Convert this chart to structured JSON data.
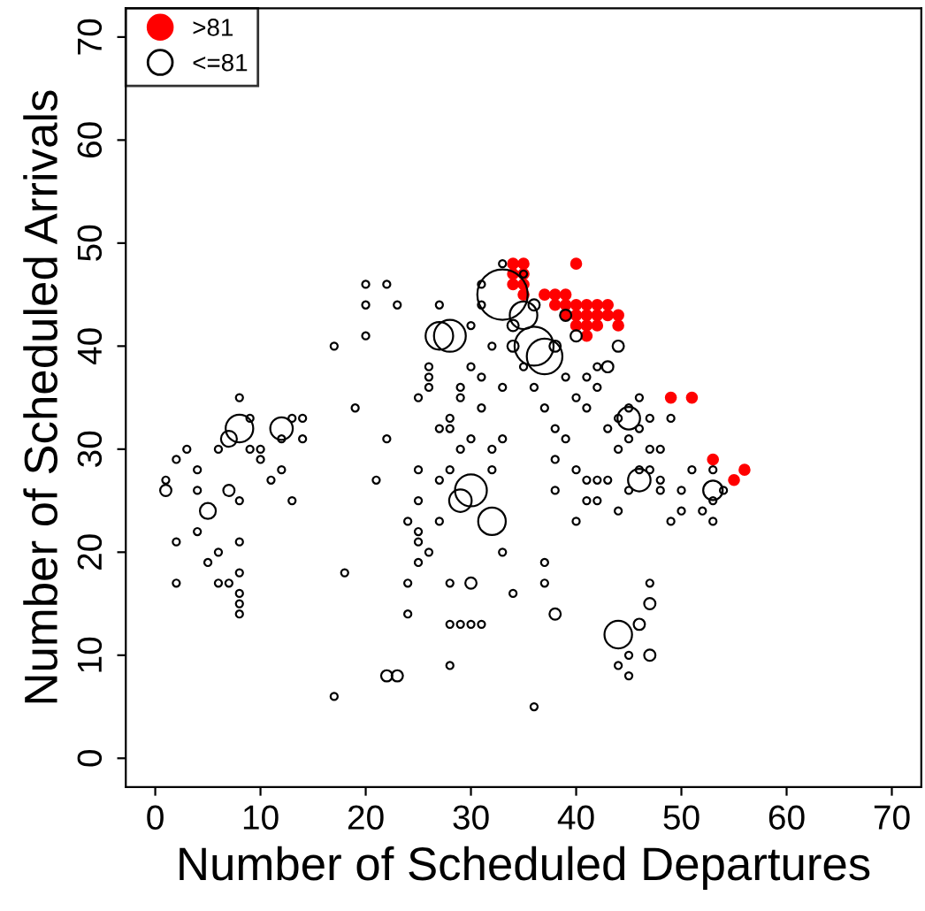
{
  "chart_data": {
    "type": "bubble",
    "xlabel": "Number of Scheduled Departures",
    "ylabel": "Number of Scheduled Arrivals",
    "xlim": [
      -2.8,
      72.8
    ],
    "ylim": [
      -2.8,
      72.8
    ],
    "xticks": [
      0,
      10,
      20,
      30,
      40,
      50,
      60,
      70
    ],
    "yticks": [
      0,
      10,
      20,
      30,
      40,
      50,
      60,
      70
    ],
    "legend": "top left",
    "marker": "circle",
    "grid": false,
    "series": [
      {
        "name": ">81",
        "color": "#ff0000",
        "x": [
          34,
          34,
          34,
          35,
          35,
          35,
          35,
          38,
          38,
          39,
          39,
          40,
          40,
          40,
          41,
          41,
          41,
          41,
          42,
          42,
          42,
          43,
          43,
          40,
          44,
          44,
          49,
          51,
          53,
          55,
          56,
          39,
          37
        ],
        "values": [
          46,
          47,
          48,
          46,
          47,
          48,
          45,
          45,
          44,
          44,
          43,
          44,
          43,
          42,
          44,
          43,
          42,
          41,
          44,
          43,
          42,
          44,
          43,
          48,
          42,
          43,
          35,
          35,
          29,
          27,
          28,
          45,
          45
        ],
        "sizes": [
          0.04,
          0.04,
          0.04,
          0.04,
          0.04,
          0.04,
          0.04,
          0.04,
          0.04,
          0.04,
          0.04,
          0.04,
          0.04,
          0.04,
          0.04,
          0.04,
          0.04,
          0.04,
          0.04,
          0.04,
          0.04,
          0.04,
          0.04,
          0.04,
          0.04,
          0.04,
          0.04,
          0.04,
          0.04,
          0.04,
          0.04,
          0.04,
          0.04
        ]
      },
      {
        "name": "<=81",
        "color": "#000000",
        "x": [
          33,
          36,
          37,
          28,
          30,
          32,
          44,
          45,
          8,
          12,
          27,
          35,
          46,
          53,
          29,
          5,
          7,
          1,
          1,
          2,
          2,
          2,
          4,
          4,
          5,
          6,
          6,
          7,
          8,
          8,
          8,
          8,
          8,
          8,
          8,
          9,
          9,
          10,
          10,
          11,
          12,
          13,
          13,
          14,
          14,
          12,
          6,
          7,
          4,
          3,
          17,
          17,
          18,
          19,
          20,
          20,
          20,
          22,
          23,
          21,
          22,
          22,
          23,
          24,
          24,
          25,
          25,
          25,
          25,
          25,
          26,
          26,
          26,
          27,
          27,
          28,
          28,
          28,
          28,
          29,
          30,
          31,
          30,
          29,
          29,
          30,
          31,
          31,
          32,
          32,
          33,
          33,
          34,
          33,
          32,
          30,
          31,
          31,
          28,
          27,
          26,
          24,
          25,
          27,
          29,
          30,
          28,
          35,
          36,
          37,
          38,
          39,
          38,
          38,
          37,
          37,
          38,
          36,
          39,
          40,
          41,
          40,
          41,
          42,
          43,
          43,
          44,
          44,
          45,
          45,
          46,
          47,
          46,
          41,
          42,
          42,
          40,
          41,
          42,
          44,
          45,
          46,
          47,
          47,
          47,
          45,
          44,
          45,
          46,
          47,
          48,
          48,
          49,
          50,
          50,
          51,
          52,
          53,
          53,
          54,
          53,
          48,
          47,
          49,
          44,
          43,
          39,
          40,
          38,
          36,
          34,
          34,
          35,
          33
        ],
        "values": [
          45,
          40,
          39,
          41,
          26,
          23,
          12,
          33,
          32,
          32,
          41,
          43,
          27,
          26,
          25,
          24,
          31,
          26,
          27,
          29,
          21,
          17,
          26,
          22,
          19,
          17,
          20,
          17,
          18,
          16,
          15,
          14,
          21,
          25,
          35,
          33,
          30,
          30,
          29,
          27,
          28,
          25,
          33,
          33,
          31,
          31,
          30,
          26,
          28,
          30,
          6,
          40,
          18,
          34,
          44,
          41,
          46,
          8,
          8,
          27,
          31,
          46,
          44,
          14,
          23,
          21,
          25,
          19,
          35,
          28,
          38,
          37,
          36,
          44,
          32,
          32,
          17,
          9,
          13,
          13,
          13,
          13,
          17,
          35,
          36,
          38,
          37,
          34,
          30,
          28,
          31,
          20,
          16,
          36,
          40,
          42,
          44,
          46,
          28,
          23,
          20,
          17,
          22,
          27,
          30,
          31,
          33,
          38,
          36,
          34,
          32,
          31,
          29,
          26,
          19,
          17,
          14,
          5,
          37,
          35,
          34,
          28,
          27,
          27,
          27,
          32,
          33,
          30,
          34,
          31,
          32,
          33,
          35,
          37,
          38,
          36,
          23,
          25,
          25,
          9,
          10,
          13,
          15,
          17,
          10,
          8,
          24,
          26,
          28,
          28,
          27,
          26,
          23,
          24,
          26,
          28,
          24,
          25,
          23,
          26,
          28,
          30,
          30,
          33,
          40,
          38,
          43,
          41,
          40,
          44,
          42,
          40,
          47,
          48
        ],
        "sizes": [
          1.0,
          0.6,
          0.5,
          0.4,
          0.4,
          0.3,
          0.3,
          0.2,
          0.3,
          0.2,
          0.3,
          0.3,
          0.2,
          0.15,
          0.2,
          0.1,
          0.1,
          0.05,
          0.02,
          0.02,
          0.02,
          0.02,
          0.02,
          0.02,
          0.02,
          0.02,
          0.02,
          0.02,
          0.02,
          0.02,
          0.02,
          0.02,
          0.02,
          0.02,
          0.02,
          0.02,
          0.02,
          0.02,
          0.02,
          0.02,
          0.02,
          0.02,
          0.02,
          0.02,
          0.02,
          0.02,
          0.02,
          0.05,
          0.02,
          0.02,
          0.02,
          0.02,
          0.02,
          0.02,
          0.02,
          0.02,
          0.02,
          0.05,
          0.05,
          0.02,
          0.02,
          0.02,
          0.02,
          0.02,
          0.02,
          0.02,
          0.02,
          0.02,
          0.02,
          0.02,
          0.02,
          0.02,
          0.02,
          0.02,
          0.02,
          0.02,
          0.02,
          0.02,
          0.02,
          0.02,
          0.02,
          0.02,
          0.05,
          0.02,
          0.02,
          0.02,
          0.02,
          0.02,
          0.02,
          0.02,
          0.02,
          0.02,
          0.02,
          0.02,
          0.02,
          0.02,
          0.02,
          0.02,
          0.02,
          0.02,
          0.02,
          0.02,
          0.02,
          0.02,
          0.02,
          0.02,
          0.02,
          0.02,
          0.02,
          0.02,
          0.02,
          0.02,
          0.02,
          0.02,
          0.02,
          0.02,
          0.05,
          0.02,
          0.02,
          0.02,
          0.02,
          0.02,
          0.02,
          0.02,
          0.02,
          0.02,
          0.02,
          0.02,
          0.02,
          0.02,
          0.02,
          0.02,
          0.02,
          0.02,
          0.02,
          0.02,
          0.02,
          0.02,
          0.02,
          0.02,
          0.02,
          0.05,
          0.05,
          0.02,
          0.05,
          0.02,
          0.02,
          0.02,
          0.02,
          0.02,
          0.02,
          0.02,
          0.02,
          0.02,
          0.02,
          0.02,
          0.02,
          0.02,
          0.02,
          0.02,
          0.02,
          0.02,
          0.02,
          0.02,
          0.05,
          0.05,
          0.05,
          0.05,
          0.05,
          0.05,
          0.05,
          0.05,
          0.02,
          0.02
        ]
      }
    ]
  }
}
